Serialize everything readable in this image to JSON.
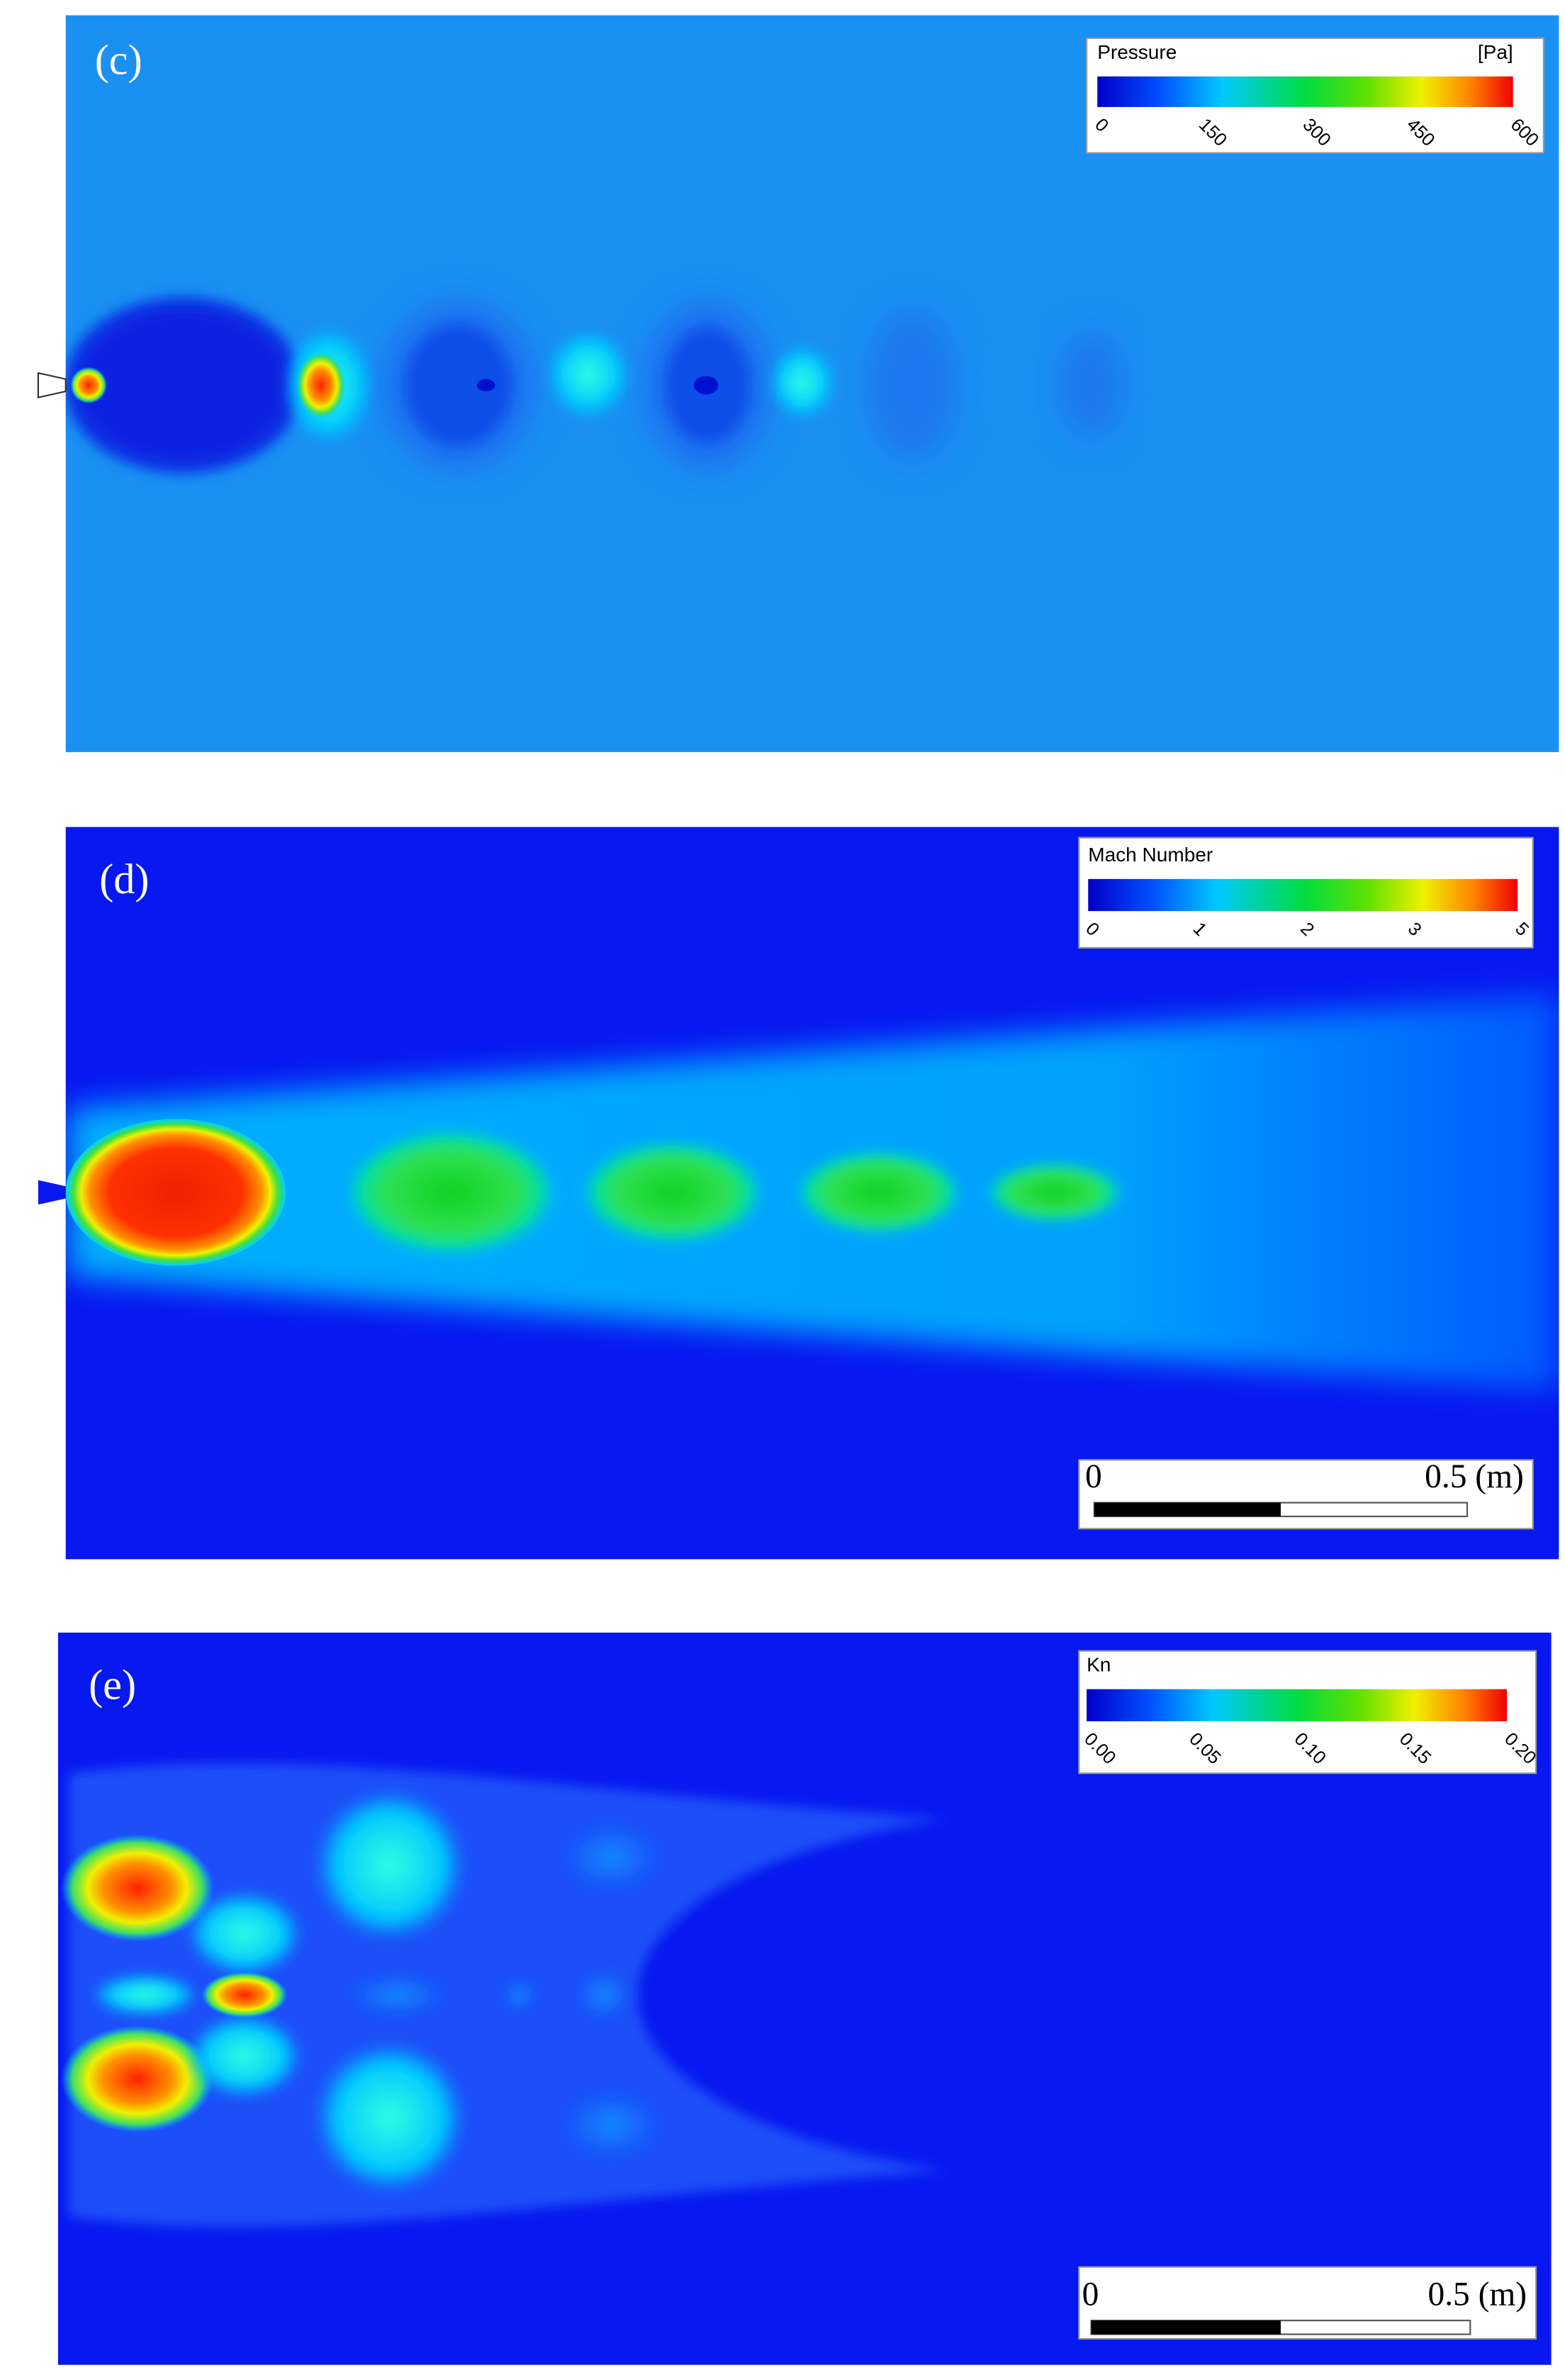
{
  "panels": [
    {
      "label": "(c)",
      "legend": {
        "title": "Pressure",
        "unit": "[Pa]",
        "ticks": [
          "0",
          "150",
          "300",
          "450",
          "600"
        ]
      }
    },
    {
      "label": "(d)",
      "legend": {
        "title": "Mach Number",
        "ticks": [
          "0",
          "1",
          "2",
          "3",
          "5"
        ]
      },
      "scale_bar": {
        "start": "0",
        "end": "0.5 (m)"
      }
    },
    {
      "label": "(e)",
      "legend": {
        "title": "Kn",
        "ticks": [
          "0.00",
          "0.05",
          "0.10",
          "0.15",
          "0.20"
        ]
      },
      "scale_bar": {
        "start": "0",
        "end": "0.5 (m)"
      }
    }
  ]
}
